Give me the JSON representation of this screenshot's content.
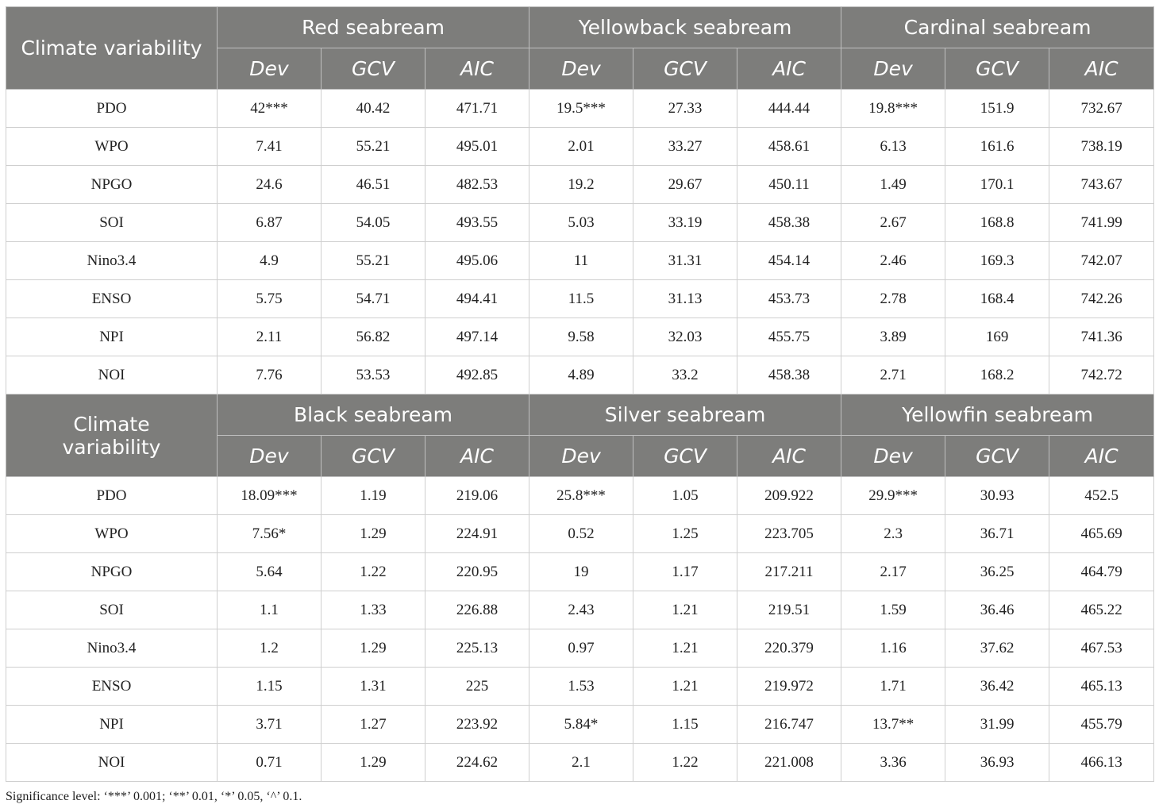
{
  "sections": [
    {
      "row_header_label": "Climate variability",
      "species": [
        "Red seabream",
        "Yellowback seabream",
        "Cardinal seabream"
      ],
      "stats": [
        "Dev",
        "GCV",
        "AIC"
      ],
      "rows": [
        {
          "index": "PDO",
          "values": [
            "42***",
            "40.42",
            "471.71",
            "19.5***",
            "27.33",
            "444.44",
            "19.8***",
            "151.9",
            "732.67"
          ]
        },
        {
          "index": "WPO",
          "values": [
            "7.41",
            "55.21",
            "495.01",
            "2.01",
            "33.27",
            "458.61",
            "6.13",
            "161.6",
            "738.19"
          ]
        },
        {
          "index": "NPGO",
          "values": [
            "24.6",
            "46.51",
            "482.53",
            "19.2",
            "29.67",
            "450.11",
            "1.49",
            "170.1",
            "743.67"
          ]
        },
        {
          "index": "SOI",
          "values": [
            "6.87",
            "54.05",
            "493.55",
            "5.03",
            "33.19",
            "458.38",
            "2.67",
            "168.8",
            "741.99"
          ]
        },
        {
          "index": "Nino3.4",
          "values": [
            "4.9",
            "55.21",
            "495.06",
            "11",
            "31.31",
            "454.14",
            "2.46",
            "169.3",
            "742.07"
          ]
        },
        {
          "index": "ENSO",
          "values": [
            "5.75",
            "54.71",
            "494.41",
            "11.5",
            "31.13",
            "453.73",
            "2.78",
            "168.4",
            "742.26"
          ]
        },
        {
          "index": "NPI",
          "values": [
            "2.11",
            "56.82",
            "497.14",
            "9.58",
            "32.03",
            "455.75",
            "3.89",
            "169",
            "741.36"
          ]
        },
        {
          "index": "NOI",
          "values": [
            "7.76",
            "53.53",
            "492.85",
            "4.89",
            "33.2",
            "458.38",
            "2.71",
            "168.2",
            "742.72"
          ]
        }
      ]
    },
    {
      "row_header_label": "Climate variability",
      "species": [
        "Black seabream",
        "Silver seabream",
        "Yellowfin seabream"
      ],
      "stats": [
        "Dev",
        "GCV",
        "AIC"
      ],
      "rows": [
        {
          "index": "PDO",
          "values": [
            "18.09***",
            "1.19",
            "219.06",
            "25.8***",
            "1.05",
            "209.922",
            "29.9***",
            "30.93",
            "452.5"
          ]
        },
        {
          "index": "WPO",
          "values": [
            "7.56*",
            "1.29",
            "224.91",
            "0.52",
            "1.25",
            "223.705",
            "2.3",
            "36.71",
            "465.69"
          ]
        },
        {
          "index": "NPGO",
          "values": [
            "5.64",
            "1.22",
            "220.95",
            "19",
            "1.17",
            "217.211",
            "2.17",
            "36.25",
            "464.79"
          ]
        },
        {
          "index": "SOI",
          "values": [
            "1.1",
            "1.33",
            "226.88",
            "2.43",
            "1.21",
            "219.51",
            "1.59",
            "36.46",
            "465.22"
          ]
        },
        {
          "index": "Nino3.4",
          "values": [
            "1.2",
            "1.29",
            "225.13",
            "0.97",
            "1.21",
            "220.379",
            "1.16",
            "37.62",
            "467.53"
          ]
        },
        {
          "index": "ENSO",
          "values": [
            "1.15",
            "1.31",
            "225",
            "1.53",
            "1.21",
            "219.972",
            "1.71",
            "36.42",
            "465.13"
          ]
        },
        {
          "index": "NPI",
          "values": [
            "3.71",
            "1.27",
            "223.92",
            "5.84*",
            "1.15",
            "216.747",
            "13.7**",
            "31.99",
            "455.79"
          ]
        },
        {
          "index": "NOI",
          "values": [
            "0.71",
            "1.29",
            "224.62",
            "2.1",
            "1.22",
            "221.008",
            "3.36",
            "36.93",
            "466.13"
          ]
        }
      ]
    }
  ],
  "footnote": "Significance level: ‘***’ 0.001; ‘**’ 0.01, ‘*’ 0.05, ‘^’ 0.1."
}
